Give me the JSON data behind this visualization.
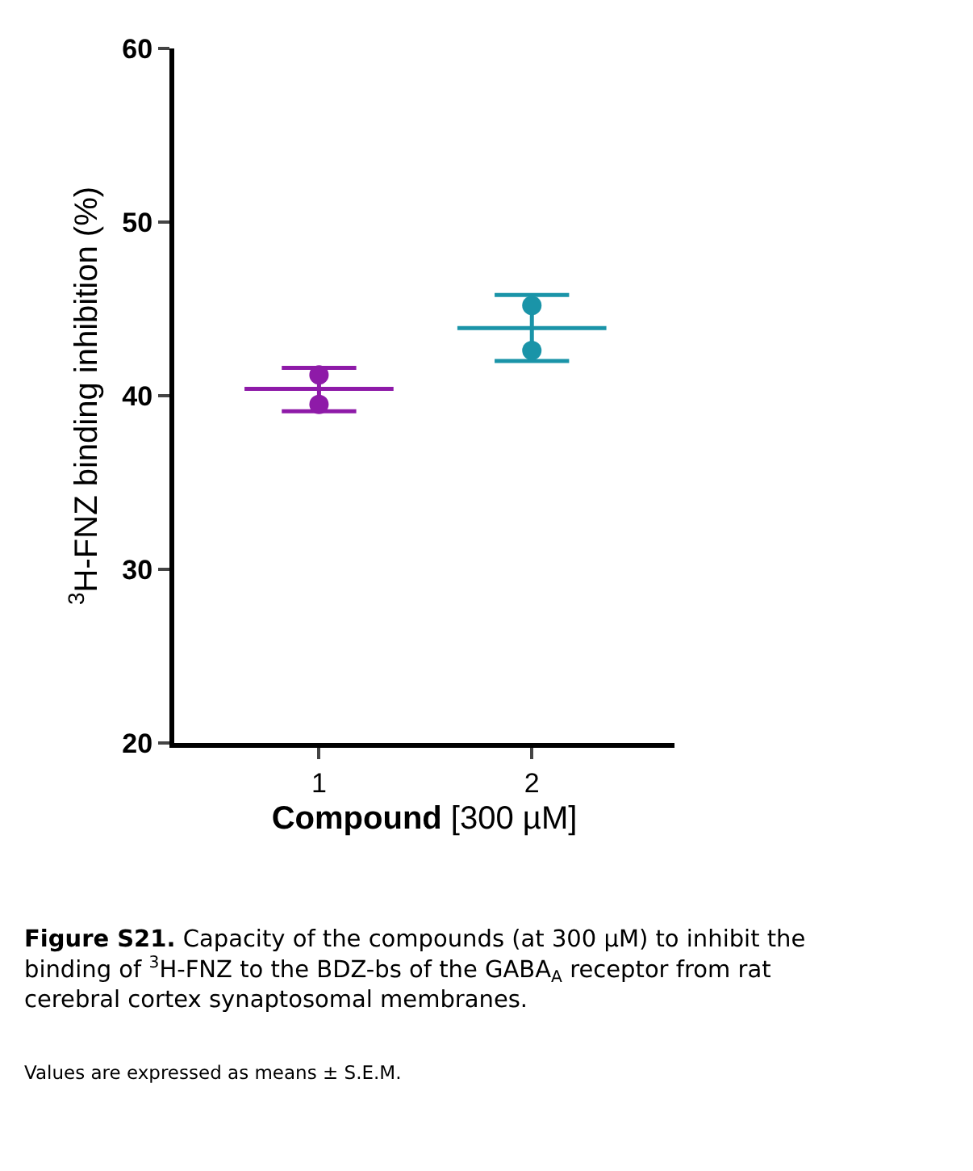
{
  "chart_data": {
    "type": "box",
    "categories": [
      "1",
      "2"
    ],
    "ylabel": "$^{3}$H-FNZ binding inhibition (%)",
    "xlabel": "Compound [300 µM]",
    "ylim": [
      20,
      60
    ],
    "yticks": [
      20,
      30,
      40,
      50,
      60
    ],
    "series": [
      {
        "colors": [
          "#8e1aa8",
          "#1a94a8"
        ],
        "boxes": [
          {
            "low": 39.1,
            "q1": 40.4,
            "median": 40.4,
            "q3": 40.4,
            "high": 41.6
          },
          {
            "low": 42.0,
            "q1": 43.9,
            "median": 43.9,
            "q3": 43.9,
            "high": 45.8
          }
        ]
      },
      {
        "type": "scatter",
        "x": [
          "1",
          "1",
          "2",
          "2"
        ],
        "values": [
          41.2,
          39.5,
          45.2,
          42.6
        ],
        "colors": [
          "#8e1aa8",
          "#8e1aa8",
          "#1a94a8",
          "#1a94a8"
        ],
        "marker": "circle"
      }
    ],
    "annotations": [
      "Figure S21.",
      "Capacity of the compounds (at 300 µM) to inhibit the binding of $^{3}$H-FNZ to the BDZ-bs of the GABA$_{A}$ receptor from rat cerebral cortex synaptosomal membranes.",
      "Values are expressed as means ± S.E.M."
    ]
  }
}
